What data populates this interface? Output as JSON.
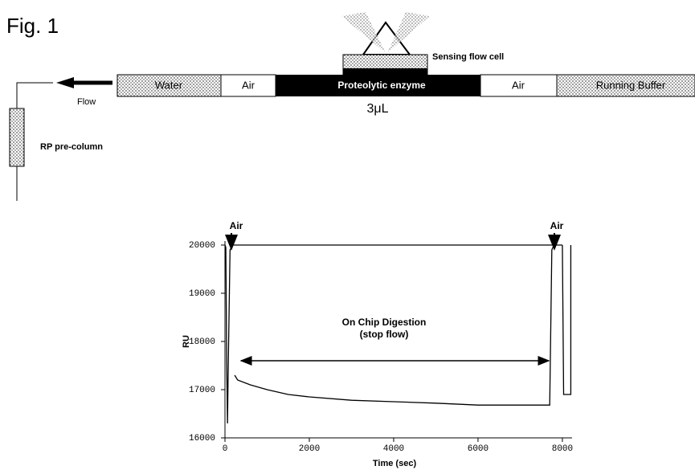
{
  "figure_label": "Fig. 1",
  "diagram": {
    "sensing_flow_cell": "Sensing flow cell",
    "segments": [
      "Water",
      "Air",
      "Proteolytic enzyme",
      "Air",
      "Running Buffer"
    ],
    "volume": "3μL",
    "flow": "Flow",
    "column": "RP pre-column"
  },
  "chart_data": {
    "type": "line",
    "xlabel": "Time (sec)",
    "ylabel": "RU",
    "xlim": [
      0,
      8230
    ],
    "xticks": [
      0,
      2000,
      4000,
      6000,
      8000
    ],
    "ylim": [
      16000,
      20000
    ],
    "yticks": [
      16000,
      17000,
      18000,
      19000,
      20000
    ],
    "color": "#000000",
    "series": [
      {
        "x": [
          0,
          20,
          40,
          60,
          80,
          120,
          180,
          8000
        ],
        "values": [
          20000,
          19950,
          17600,
          16300,
          17600,
          19900,
          20000,
          20000
        ]
      },
      {
        "x": [
          230,
          300,
          600,
          1000,
          1500,
          2000,
          3000,
          4000,
          5000,
          6000,
          7000,
          7700,
          7750,
          7800
        ],
        "values": [
          17300,
          17200,
          17100,
          17000,
          16900,
          16850,
          16780,
          16750,
          16720,
          16680,
          16680,
          16680,
          19900,
          20000
        ]
      },
      {
        "x": [
          8000,
          8030,
          8150,
          8200,
          8200
        ],
        "values": [
          20000,
          16900,
          16900,
          16900,
          20000
        ]
      }
    ],
    "annotations": [
      "Air",
      "Air",
      "On Chip Digestion",
      "(stop flow)"
    ]
  }
}
